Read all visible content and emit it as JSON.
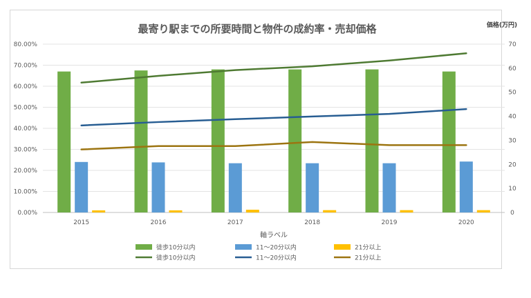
{
  "chart_data": {
    "type": "bar+line",
    "title": "最寄り駅までの所要時間と物件の成約率・売却価格",
    "xlabel": "軸ラベル",
    "y2label": "価格(万円)",
    "categories": [
      "2015",
      "2016",
      "2017",
      "2018",
      "2019",
      "2020"
    ],
    "ylim": [
      0,
      0.8
    ],
    "y_ticks": [
      "0.00%",
      "10.00%",
      "20.00%",
      "30.00%",
      "40.00%",
      "50.00%",
      "60.00%",
      "70.00%",
      "80.00%"
    ],
    "y2lim": [
      0,
      70
    ],
    "y2_ticks": [
      "0",
      "10",
      "20",
      "30",
      "40",
      "50",
      "60",
      "70"
    ],
    "bar_series": [
      {
        "name": "徒歩10分以内",
        "color": "#70ad47",
        "values": [
          0.67,
          0.675,
          0.68,
          0.68,
          0.68,
          0.67
        ]
      },
      {
        "name": "11～20分以内",
        "color": "#5b9bd5",
        "values": [
          0.24,
          0.238,
          0.234,
          0.234,
          0.234,
          0.242
        ]
      },
      {
        "name": "21分以上",
        "color": "#ffc000",
        "values": [
          0.01,
          0.01,
          0.013,
          0.011,
          0.011,
          0.011
        ]
      }
    ],
    "line_series": [
      {
        "name": "徒歩10分以内",
        "color": "#4e7a32",
        "values": [
          54,
          56.8,
          59.2,
          60.8,
          63.2,
          66.2
        ]
      },
      {
        "name": "11～20分以内",
        "color": "#275d92",
        "values": [
          36.2,
          37.6,
          38.8,
          39.9,
          41,
          43
        ]
      },
      {
        "name": "21分以上",
        "color": "#9c7410",
        "values": [
          26.2,
          27.6,
          27.6,
          29.3,
          28,
          28
        ]
      }
    ]
  }
}
